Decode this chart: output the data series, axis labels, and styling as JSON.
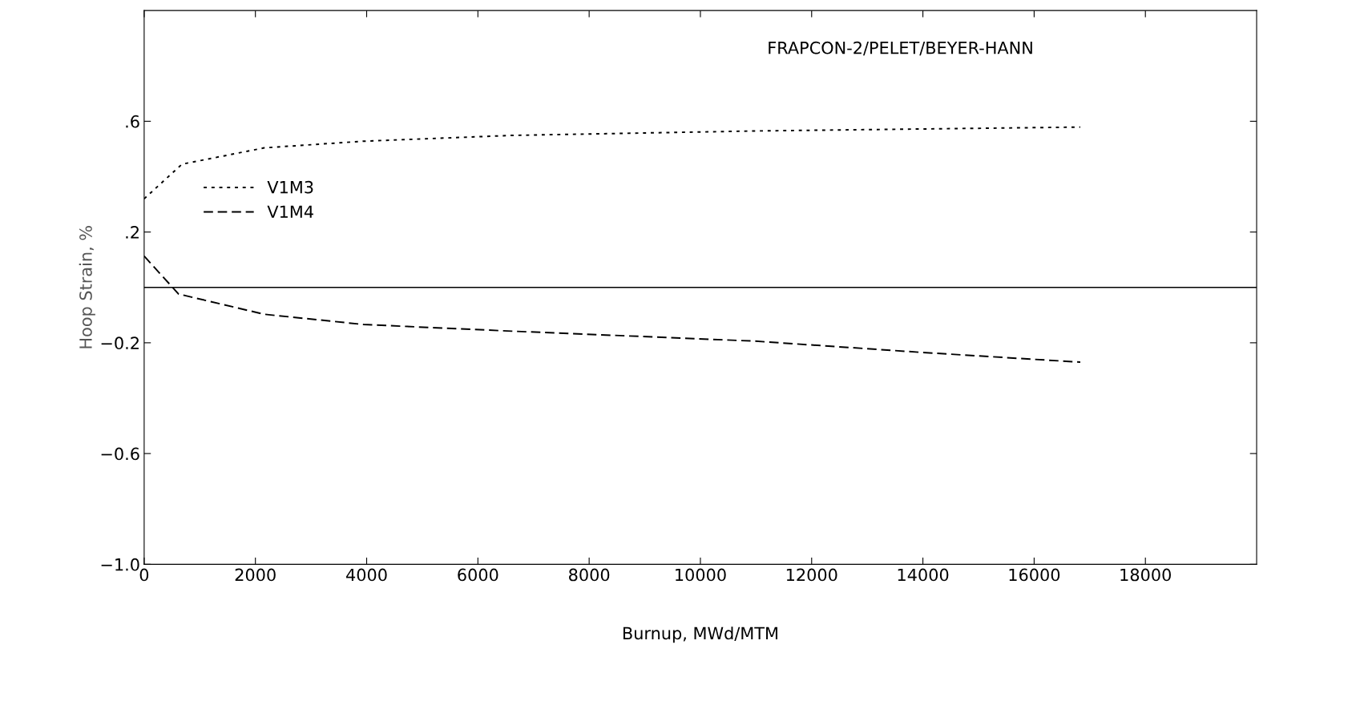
{
  "chart_data": {
    "type": "line",
    "annotations": [
      "FRAPCON-2/PELET/BEYER-HANN"
    ],
    "xlabel": "Burnup, MWd/MTM",
    "ylabel": "Hoop Strain, %",
    "xlim": [
      0,
      20000
    ],
    "xticks": [
      0,
      2000,
      4000,
      6000,
      8000,
      10000,
      12000,
      14000,
      16000,
      18000
    ],
    "ylim": [
      -1.0,
      1.0
    ],
    "yticks": [
      {
        "value": -1.0,
        "label": "−1.0"
      },
      {
        "value": -0.6,
        "label": "−0.6"
      },
      {
        "value": -0.2,
        "label": "−0.2"
      },
      {
        "value": 0.2,
        "label": ".2"
      },
      {
        "value": 0.6,
        "label": ".6"
      }
    ],
    "grid": false,
    "legend": "top left",
    "marker": "none",
    "ref_lines": [
      {
        "axis": "y",
        "value": 0,
        "color": "#000000",
        "line_style": "solid"
      }
    ],
    "series": [
      {
        "name": "V1M3",
        "color": "#000000",
        "line_style": "dotted",
        "x": [
          0,
          680,
          2160,
          3945,
          6610,
          10980,
          16830
        ],
        "values": [
          0.32,
          0.445,
          0.504,
          0.528,
          0.549,
          0.565,
          0.579
        ]
      },
      {
        "name": "V1M4",
        "color": "#000000",
        "line_style": "dashed",
        "x": [
          0,
          620,
          2160,
          3945,
          6610,
          10980,
          14000,
          16830
        ],
        "values": [
          0.113,
          -0.024,
          -0.097,
          -0.134,
          -0.158,
          -0.194,
          -0.235,
          -0.27
        ]
      }
    ]
  }
}
